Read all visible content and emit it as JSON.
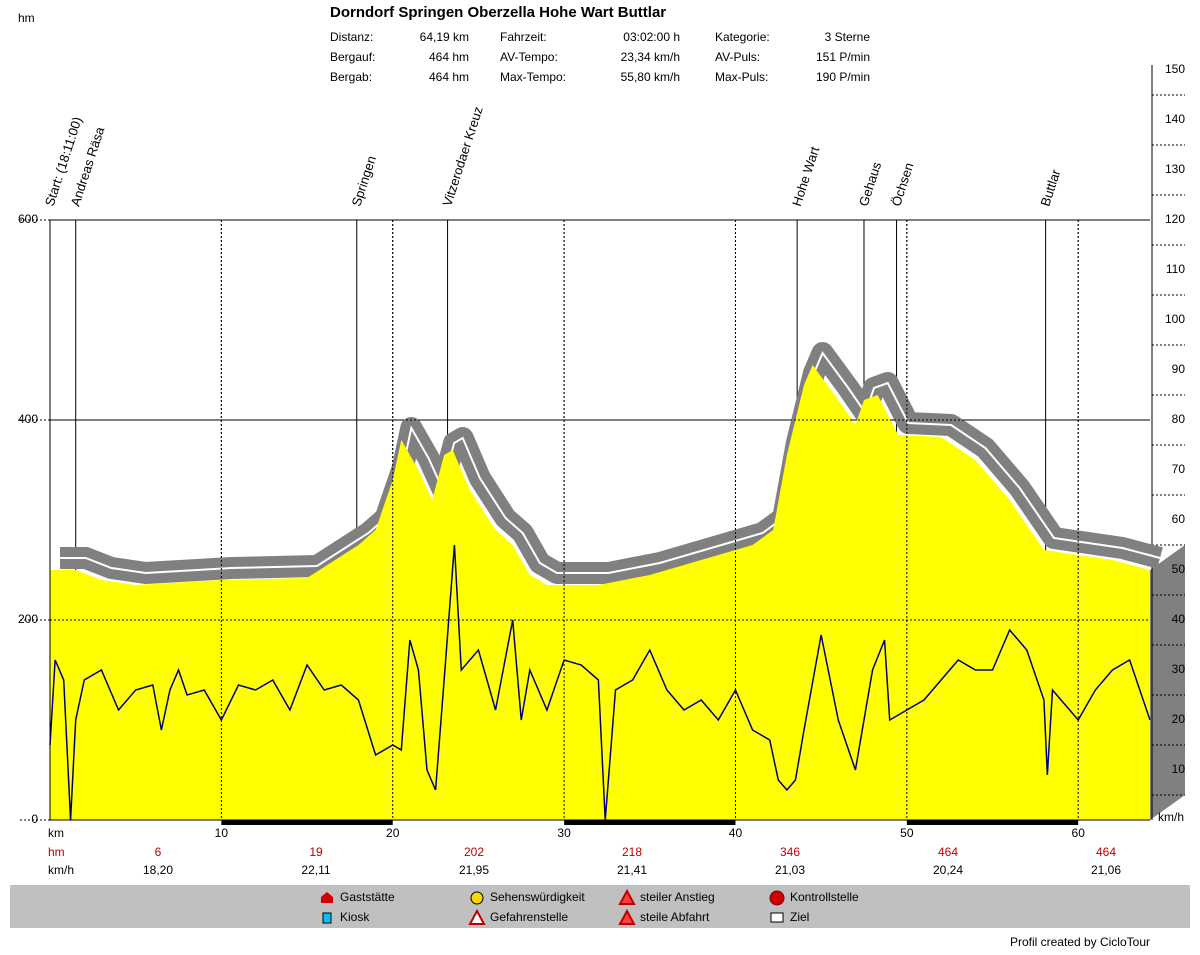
{
  "chart_data": {
    "type": "area",
    "title": "Dorndorf Springen Oberzella Hohe Wart Buttlar",
    "stats": [
      [
        "Distanz:",
        "64,19 km",
        "Fahrzeit:",
        "03:02:00 h",
        "Kategorie:",
        "3 Sterne"
      ],
      [
        "Bergauf:",
        "464 hm",
        "AV-Tempo:",
        "23,34 km/h",
        "AV-Puls:",
        "151 P/min"
      ],
      [
        "Bergab:",
        "464 hm",
        "Max-Tempo:",
        "55,80 km/h",
        "Max-Puls:",
        "190 P/min"
      ]
    ],
    "ylabel": "hm",
    "xlabel": "km",
    "y2label": "km/h",
    "xlim": [
      0,
      64.19
    ],
    "xticks": [
      10,
      20,
      30,
      40,
      50,
      60
    ],
    "ylim": [
      0,
      600
    ],
    "yticks": [
      0,
      200,
      400,
      600
    ],
    "y2lim": [
      0,
      150
    ],
    "y2ticks": [
      10,
      20,
      30,
      40,
      50,
      60,
      70,
      80,
      90,
      100,
      110,
      120,
      130,
      140,
      150
    ],
    "grid": true,
    "series": [
      {
        "color": "#ffff00",
        "x": [
          0,
          1.5,
          3,
          5,
          10,
          15,
          18,
          19,
          20,
          20.5,
          21.5,
          22.3,
          23,
          23.5,
          24.5,
          26,
          27,
          28,
          29,
          32,
          35,
          38,
          41,
          42.2,
          43,
          44,
          44.5,
          46,
          47,
          47.5,
          48.3,
          49.5,
          52,
          54,
          56,
          58,
          60,
          62,
          64.19
        ],
        "values": [
          250,
          250,
          240,
          235,
          240,
          242,
          275,
          290,
          340,
          380,
          350,
          320,
          365,
          370,
          330,
          290,
          275,
          245,
          235,
          235,
          245,
          260,
          275,
          290,
          365,
          435,
          455,
          420,
          395,
          420,
          425,
          385,
          383,
          360,
          320,
          270,
          265,
          260,
          250
        ]
      },
      {
        "color": "#000080",
        "axis": "y2",
        "x": [
          0,
          0.3,
          0.8,
          1.2,
          1.5,
          2,
          3,
          4,
          5,
          6,
          6.5,
          7,
          7.5,
          8,
          9,
          10,
          11,
          12,
          13,
          14,
          15,
          16,
          17,
          18,
          19,
          20,
          20.5,
          21,
          21.5,
          22,
          22.5,
          23,
          23.6,
          24,
          25,
          26,
          27,
          27.5,
          28,
          29,
          30,
          31,
          32,
          32.4,
          33,
          34,
          35,
          36,
          37,
          38,
          39,
          40,
          41,
          42,
          42.5,
          43,
          43.5,
          44,
          45,
          46,
          47,
          48,
          48.7,
          49,
          50,
          51,
          52,
          53,
          54,
          55,
          56,
          57,
          58,
          58.2,
          58.5,
          59,
          60,
          61,
          62,
          63,
          64.19
        ],
        "values": [
          15,
          32,
          28,
          0,
          20,
          28,
          30,
          22,
          26,
          27,
          18,
          26,
          30,
          25,
          26,
          20,
          27,
          26,
          28,
          22,
          31,
          26,
          27,
          24,
          13,
          15,
          14,
          36,
          30,
          10,
          6,
          28,
          55,
          30,
          34,
          22,
          40,
          20,
          30,
          22,
          32,
          31,
          28,
          0,
          26,
          28,
          34,
          26,
          22,
          24,
          20,
          26,
          18,
          16,
          8,
          6,
          8,
          18,
          37,
          20,
          10,
          30,
          36,
          20,
          22,
          24,
          28,
          32,
          30,
          30,
          38,
          34,
          24,
          9,
          26,
          24,
          20,
          26,
          30,
          32,
          20
        ]
      }
    ],
    "waypoints": [
      {
        "label": "Start: (18:11:00)",
        "km": 0
      },
      {
        "label": "Andreas Räsa",
        "km": 1.5
      },
      {
        "label": "Springen",
        "km": 17.9
      },
      {
        "label": "Vitzerodaer Kreuz",
        "km": 23.2
      },
      {
        "label": "Hohe Wart",
        "km": 43.6
      },
      {
        "label": "Gehaus",
        "km": 47.5
      },
      {
        "label": "Öchsen",
        "km": 49.4
      },
      {
        "label": "Buttlar",
        "km": 58.1
      }
    ],
    "segment_stats": {
      "hm_label": "hm",
      "kmh_label": "km/h",
      "hm": [
        6,
        19,
        202,
        218,
        346,
        464,
        464
      ],
      "kmh": [
        "18,20",
        "22,11",
        "21,95",
        "21,41",
        "21,03",
        "20,24",
        "21,06"
      ]
    },
    "legend": [
      "Gaststätte",
      "Kiosk",
      "Sehenswürdigkeit",
      "Gefahrenstelle",
      "steiler Anstieg",
      "steile Abfahrt",
      "Kontrollstelle",
      "Ziel"
    ],
    "footer": "Profil created by CicloTour"
  }
}
